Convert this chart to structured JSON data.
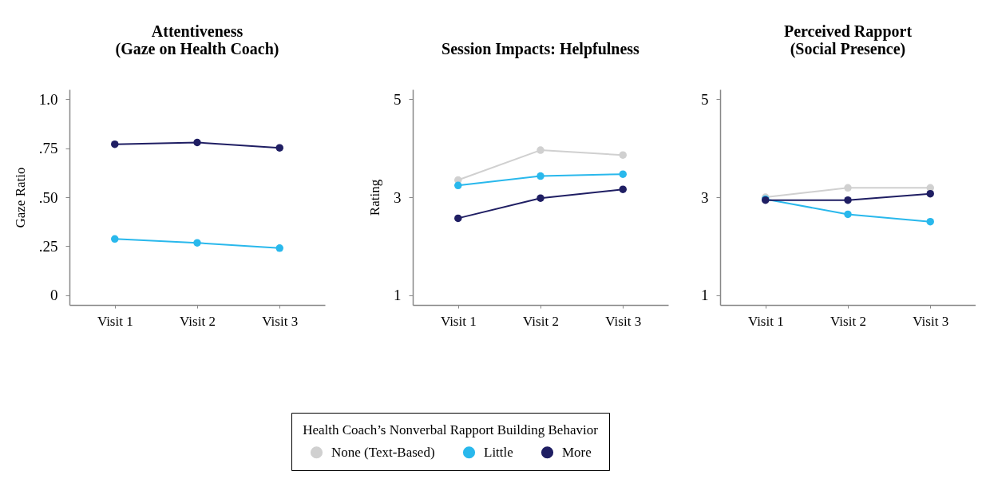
{
  "chart_data": [
    {
      "type": "line",
      "title": "Attentiveness\n(Gaze on Health Coach)",
      "ylabel": "Gaze Ratio",
      "categories": [
        "Visit 1",
        "Visit 2",
        "Visit 3"
      ],
      "ylim": [
        -0.05,
        1.05
      ],
      "yticks": [
        0,
        {
          "value": 0.25,
          "label": ".25"
        },
        {
          "value": 0.5,
          "label": ".50"
        },
        {
          "value": 0.75,
          "label": ".75"
        },
        {
          "value": 1,
          "label": "1.0"
        }
      ],
      "marker": "circle",
      "line_style": "solid",
      "legend": "bottom",
      "series": [
        {
          "name": "Little",
          "color": "#29b8ec",
          "values": [
            0.287,
            0.267,
            0.24
          ]
        },
        {
          "name": "More",
          "color": "#1f1e63",
          "values": [
            0.77,
            0.779,
            0.752
          ]
        }
      ]
    },
    {
      "type": "line",
      "title": "Session Impacts: Helpfulness",
      "ylabel": "Rating",
      "categories": [
        "Visit 1",
        "Visit 2",
        "Visit 3"
      ],
      "ylim": [
        0.8,
        5.2
      ],
      "yticks": [
        1,
        3,
        5
      ],
      "marker": "circle",
      "line_style": "solid",
      "legend": "bottom",
      "legend_title": "Health Coach’s Nonverbal Rapport Building Behavior",
      "series": [
        {
          "name": "None (Text-Based)",
          "color": "#d0d0d0",
          "values": [
            3.35,
            3.96,
            3.86
          ]
        },
        {
          "name": "Little",
          "color": "#29b8ec",
          "values": [
            3.24,
            3.43,
            3.47
          ]
        },
        {
          "name": "More",
          "color": "#1f1e63",
          "values": [
            2.57,
            2.98,
            3.16
          ]
        }
      ]
    },
    {
      "type": "line",
      "title": "Perceived Rapport\n(Social Presence)",
      "categories": [
        "Visit 1",
        "Visit 2",
        "Visit 3"
      ],
      "ylim": [
        0.8,
        5.2
      ],
      "yticks": [
        1,
        3,
        5
      ],
      "marker": "circle",
      "line_style": "solid",
      "legend": "bottom",
      "series": [
        {
          "name": "None (Text-Based)",
          "color": "#d0d0d0",
          "values": [
            3.0,
            3.19,
            3.19
          ]
        },
        {
          "name": "Little",
          "color": "#29b8ec",
          "values": [
            2.96,
            2.65,
            2.5
          ]
        },
        {
          "name": "More",
          "color": "#1f1e63",
          "values": [
            2.94,
            2.94,
            3.07
          ]
        }
      ]
    }
  ]
}
